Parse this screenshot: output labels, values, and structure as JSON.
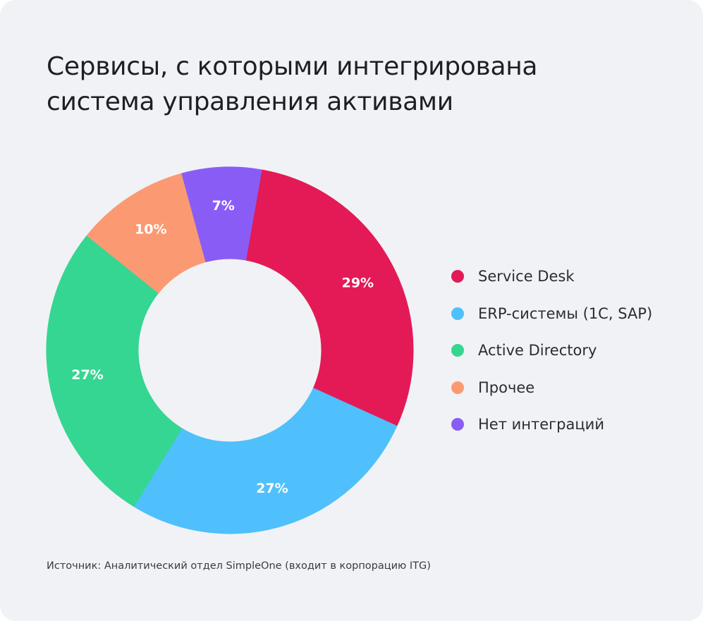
{
  "title_lines": [
    "Сервисы, с которыми интегрирована",
    "система управления активами"
  ],
  "source": "Источник: Аналитический отдел SimpleOne (входит в корпорацию ITG)",
  "chart_data": {
    "type": "pie",
    "donut": true,
    "title": "Сервисы, с которыми интегрирована система управления активами",
    "slices": [
      {
        "label": "Service Desk",
        "value": 29,
        "value_label": "29%",
        "color": "#e31a56"
      },
      {
        "label": "ERP-системы (1С, SAP)",
        "value": 27,
        "value_label": "27%",
        "color": "#4fc0fb"
      },
      {
        "label": "Active Directory",
        "value": 27,
        "value_label": "27%",
        "color": "#35d692"
      },
      {
        "label": "Прочее",
        "value": 10,
        "value_label": "10%",
        "color": "#fb9a72"
      },
      {
        "label": "Нет интеграций",
        "value": 7,
        "value_label": "7%",
        "color": "#8a5cf6"
      }
    ],
    "legend_position": "right"
  }
}
